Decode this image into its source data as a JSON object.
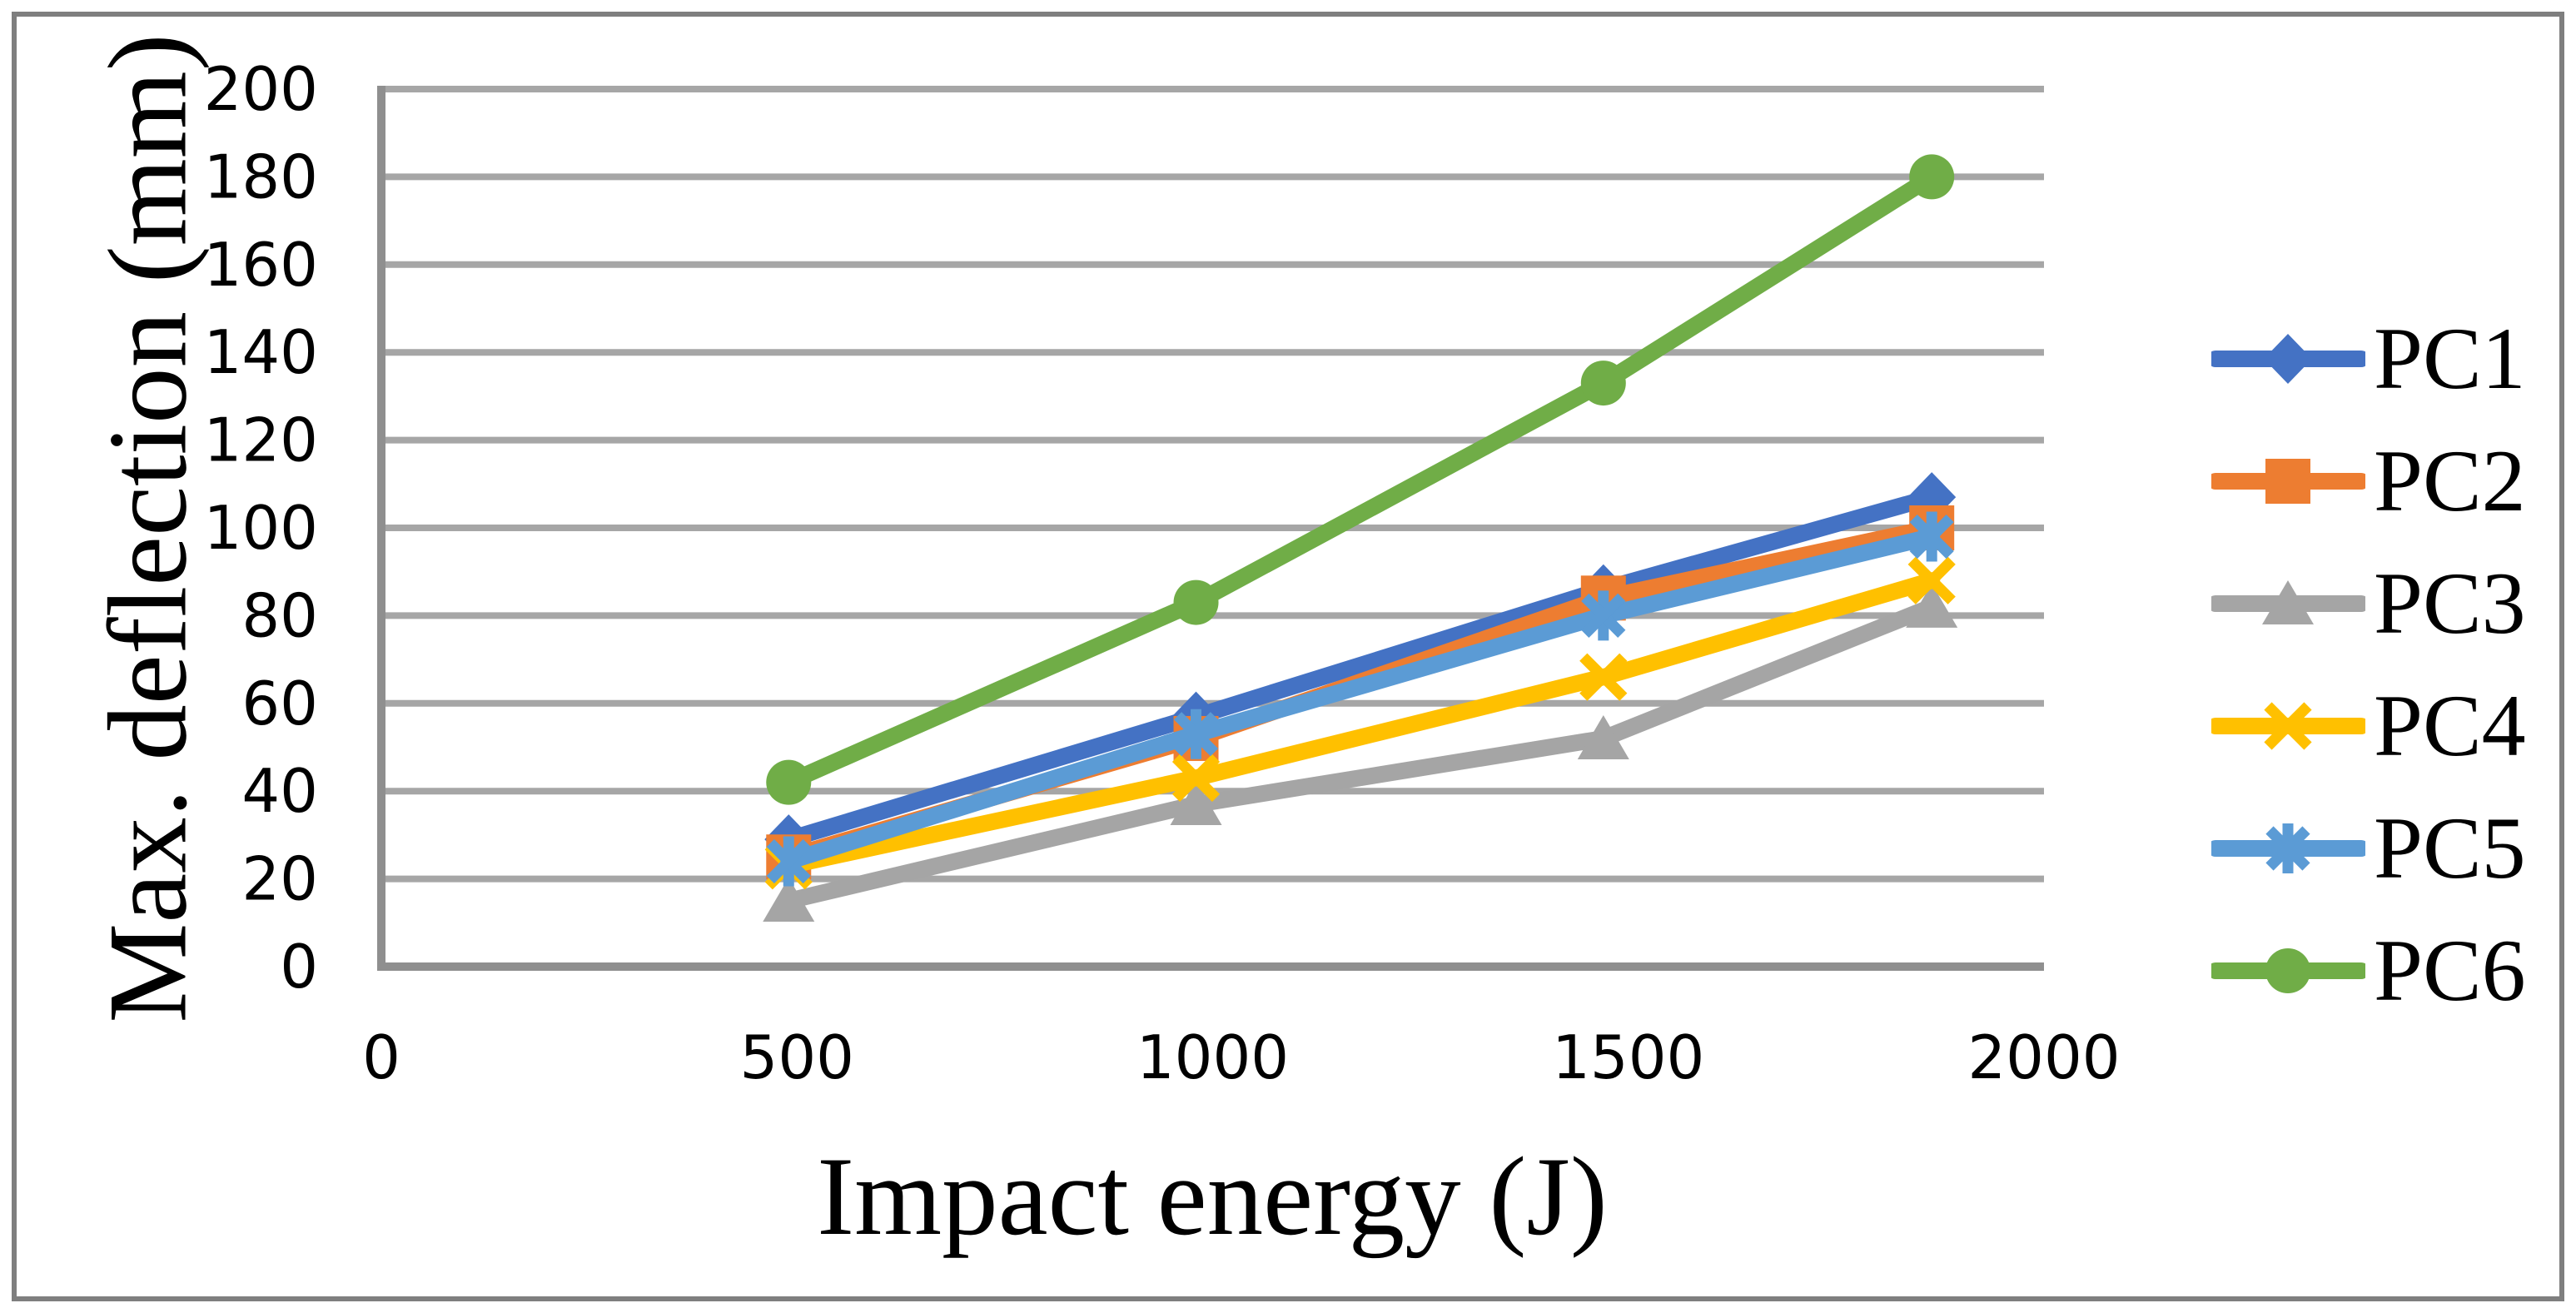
{
  "chart_data": {
    "type": "line",
    "title": "",
    "xlabel": "Impact energy (J)",
    "ylabel": "Max. deflection (mm)",
    "xlim": [
      0,
      2000
    ],
    "ylim": [
      0,
      200
    ],
    "xticks": [
      0,
      500,
      1000,
      1500,
      2000
    ],
    "yticks": [
      0,
      20,
      40,
      60,
      80,
      100,
      120,
      140,
      160,
      180,
      200
    ],
    "grid": "horizontal",
    "legend_position": "right",
    "x": [
      490,
      980,
      1470,
      1865
    ],
    "series": [
      {
        "name": "PC1",
        "color": "#4472C4",
        "marker": "diamond",
        "values": [
          29,
          57,
          86,
          107
        ]
      },
      {
        "name": "PC2",
        "color": "#ED7D31",
        "marker": "square",
        "values": [
          25,
          52,
          84,
          100
        ]
      },
      {
        "name": "PC3",
        "color": "#A5A5A5",
        "marker": "triangle",
        "values": [
          15,
          37,
          52,
          82
        ]
      },
      {
        "name": "PC4",
        "color": "#FFC000",
        "marker": "x",
        "values": [
          23,
          43,
          66,
          88
        ]
      },
      {
        "name": "PC5",
        "color": "#5B9BD5",
        "marker": "asterisk",
        "values": [
          24,
          53,
          80,
          98
        ]
      },
      {
        "name": "PC6",
        "color": "#70AD47",
        "marker": "circle",
        "values": [
          42,
          83,
          133,
          180
        ]
      }
    ],
    "colors": {
      "gridline": "#A6A6A6",
      "axis": "#8F8F8F",
      "frame": "#7F7F7F",
      "text": "#000000",
      "background": "#FFFFFF"
    }
  }
}
